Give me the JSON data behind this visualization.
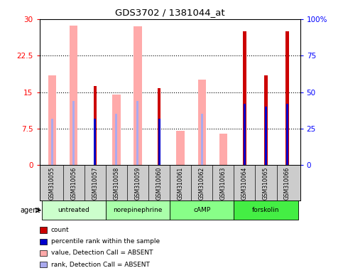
{
  "title": "GDS3702 / 1381044_at",
  "samples": [
    "GSM310055",
    "GSM310056",
    "GSM310057",
    "GSM310058",
    "GSM310059",
    "GSM310060",
    "GSM310061",
    "GSM310062",
    "GSM310063",
    "GSM310064",
    "GSM310065",
    "GSM310066"
  ],
  "groups": [
    {
      "label": "untreated",
      "indices": [
        0,
        1,
        2
      ],
      "color": "#ccffcc"
    },
    {
      "label": "norepinephrine",
      "indices": [
        3,
        4,
        5
      ],
      "color": "#aaffaa"
    },
    {
      "label": "cAMP",
      "indices": [
        6,
        7,
        8
      ],
      "color": "#88ff88"
    },
    {
      "label": "forskolin",
      "indices": [
        9,
        10,
        11
      ],
      "color": "#44ee44"
    }
  ],
  "count_values": [
    null,
    null,
    16.2,
    null,
    null,
    15.8,
    null,
    null,
    null,
    27.5,
    18.5,
    27.5
  ],
  "count_absent_values": [
    18.5,
    28.7,
    null,
    14.5,
    28.5,
    null,
    7.0,
    17.5,
    6.5,
    null,
    null,
    null
  ],
  "percentile_values": [
    null,
    null,
    32.0,
    null,
    null,
    32.0,
    null,
    null,
    null,
    42.0,
    40.0,
    42.0
  ],
  "percentile_absent_values": [
    32.0,
    44.0,
    null,
    35.0,
    44.0,
    null,
    null,
    35.0,
    null,
    null,
    null,
    null
  ],
  "ylim_left": [
    0,
    30
  ],
  "ylim_right": [
    0,
    100
  ],
  "yticks_left": [
    0,
    7.5,
    15,
    22.5,
    30
  ],
  "yticks_right": [
    0,
    25,
    50,
    75,
    100
  ],
  "ytick_labels_left": [
    "0",
    "7.5",
    "15",
    "22.5",
    "30"
  ],
  "ytick_labels_right": [
    "0",
    "25",
    "50",
    "75",
    "100%"
  ],
  "bar_color_count": "#cc0000",
  "bar_color_count_absent": "#ffaaaa",
  "bar_color_pct": "#0000cc",
  "bar_color_pct_absent": "#aaaaee",
  "legend_items": [
    {
      "color": "#cc0000",
      "label": "count"
    },
    {
      "color": "#0000cc",
      "label": "percentile rank within the sample"
    },
    {
      "color": "#ffaaaa",
      "label": "value, Detection Call = ABSENT"
    },
    {
      "color": "#aaaaee",
      "label": "rank, Detection Call = ABSENT"
    }
  ]
}
